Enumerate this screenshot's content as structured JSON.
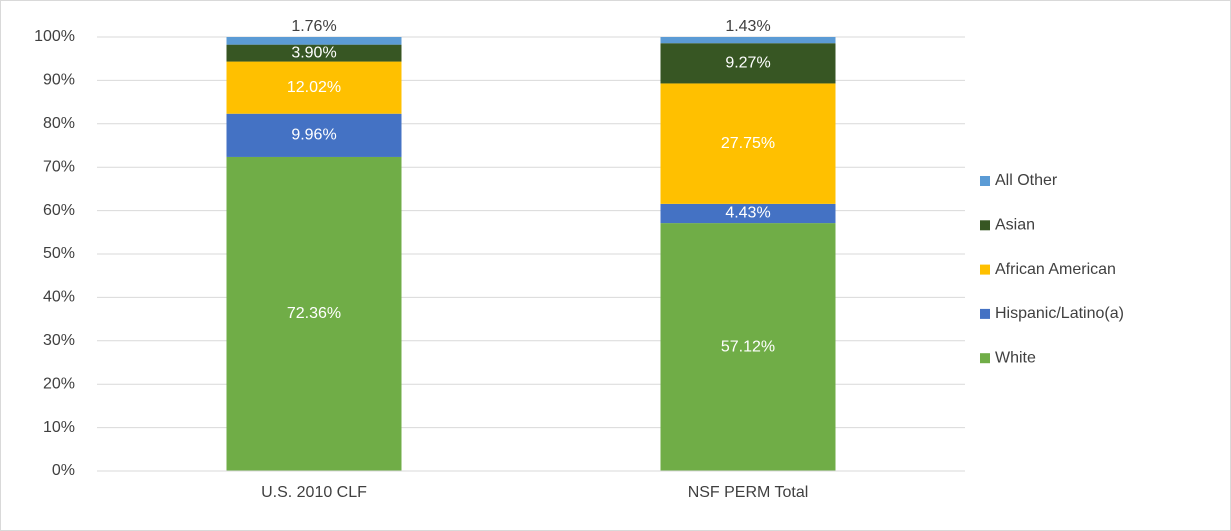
{
  "chart_data": {
    "type": "stacked_bar",
    "categories": [
      "U.S. 2010 CLF",
      "NSF PERM Total"
    ],
    "series": [
      {
        "name": "White",
        "color": "#70ad47",
        "values": [
          72.36,
          57.12
        ],
        "value_labels": [
          "72.36%",
          "57.12%"
        ]
      },
      {
        "name": "Hispanic/Latino(a)",
        "color": "#4472c4",
        "values": [
          9.96,
          4.43
        ],
        "value_labels": [
          "9.96%",
          "4.43%"
        ]
      },
      {
        "name": "African American",
        "color": "#ffc000",
        "values": [
          12.02,
          27.75
        ],
        "value_labels": [
          "12.02%",
          "27.75%"
        ]
      },
      {
        "name": "Asian",
        "color": "#375623",
        "values": [
          3.9,
          9.27
        ],
        "value_labels": [
          "3.90%",
          "9.27%"
        ]
      },
      {
        "name": "All Other",
        "color": "#5b9bd5",
        "values": [
          1.76,
          1.43
        ],
        "value_labels": [
          "1.76%",
          "1.43%"
        ]
      }
    ],
    "ylim": [
      0,
      100
    ],
    "yticks": [
      {
        "value": 0,
        "label": "0%"
      },
      {
        "value": 10,
        "label": "10%"
      },
      {
        "value": 20,
        "label": "20%"
      },
      {
        "value": 30,
        "label": "30%"
      },
      {
        "value": 40,
        "label": "40%"
      },
      {
        "value": 50,
        "label": "50%"
      },
      {
        "value": 60,
        "label": "60%"
      },
      {
        "value": 70,
        "label": "70%"
      },
      {
        "value": 80,
        "label": "80%"
      },
      {
        "value": 90,
        "label": "90%"
      },
      {
        "value": 100,
        "label": "100%"
      }
    ],
    "grid": true,
    "legend": "right"
  }
}
